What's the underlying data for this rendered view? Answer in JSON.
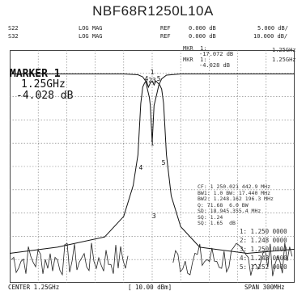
{
  "title": "NBF68R1250L10A",
  "header": {
    "row1": {
      "param": "S22",
      "format": "LOG MAG",
      "ref_label": "REF",
      "ref_value": "0.000 dB",
      "scale": "5.000 dB/"
    },
    "row2": {
      "param": "S32",
      "format": "LOG MAG",
      "ref_label": "REF",
      "ref_value": "0.000 dB",
      "scale": "10.000 dB/"
    }
  },
  "marker_top": {
    "line1": "MKR  1:",
    "line2": "-17.072 dB",
    "line3": "MKR  1:",
    "line4": "-4.028 dB",
    "right1": "1.25GHz",
    "right2": "1.25GHz"
  },
  "marker": {
    "title": "MARKER  1",
    "freq": "1.25GHz",
    "value": "-4.028 dB"
  },
  "stats": [
    "CF: 1 250.021 442.9 MHz",
    "BW1: 1.0 BW: 17.440 MHz",
    "BW2: 1.248.162 196.3 MHz",
    "Q: 71.68  6.0 BW",
    "SD: 18.945.355.4 MHz",
    "SQ: 1.24",
    "SQ: 1.65  dB"
  ],
  "marker_list": [
    "1: 1.250 0000",
    "2: 1.248 0000",
    "3: 1.250 0000",
    "4: 1.248 0000",
    "5: 1.252 0000"
  ],
  "marker_labels": [
    "1",
    "2",
    "3",
    "4",
    "5"
  ],
  "footer": {
    "center": "CENTER 1.25GHz",
    "power": "[ 10.00 dBm]",
    "span": "SPAN 300MHz"
  },
  "chart_data": {
    "type": "line",
    "x_unit": "GHz",
    "x_range": [
      1.1,
      1.4
    ],
    "grid": true,
    "series": [
      {
        "trace": "S22",
        "y_unit": "dB",
        "y_range": [
          -50,
          0
        ],
        "x": [
          1.1,
          1.22,
          1.235,
          1.24,
          1.243,
          1.245,
          1.247,
          1.248,
          1.25,
          1.252,
          1.253,
          1.255,
          1.257,
          1.26,
          1.265,
          1.28,
          1.4
        ],
        "y": [
          -0.3,
          -0.3,
          -0.5,
          -1,
          -2,
          -4,
          -6,
          -8,
          -17,
          -8,
          -7,
          -5,
          -3,
          -1.5,
          -0.6,
          -0.3,
          -0.3
        ]
      },
      {
        "trace": "S32",
        "y_unit": "dB",
        "y_range": [
          -100,
          0
        ],
        "x": [
          1.1,
          1.15,
          1.2,
          1.22,
          1.23,
          1.235,
          1.238,
          1.24,
          1.242,
          1.244,
          1.246,
          1.248,
          1.25,
          1.252,
          1.254,
          1.256,
          1.258,
          1.26,
          1.262,
          1.265,
          1.27,
          1.28,
          1.3,
          1.35,
          1.4
        ],
        "y": [
          -88,
          -85,
          -80,
          -70,
          -55,
          -40,
          -15,
          -7,
          -5,
          -4,
          -7,
          -5,
          -4,
          -6,
          -4,
          -5,
          -6,
          -8,
          -15,
          -40,
          -60,
          -75,
          -85,
          -88,
          -86
        ]
      }
    ]
  }
}
